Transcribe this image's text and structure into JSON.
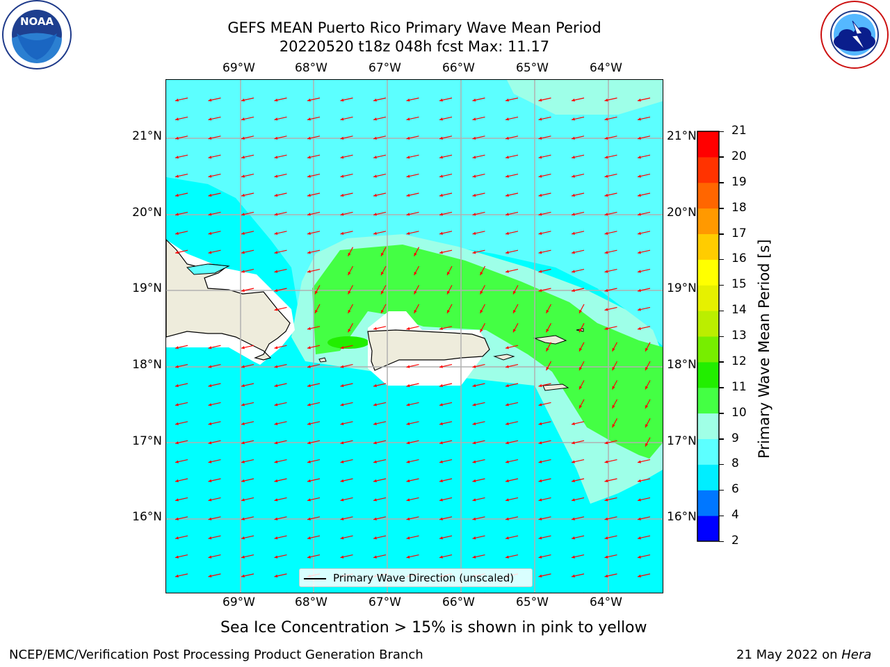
{
  "title": {
    "line1": "GEFS MEAN Puerto Rico Primary Wave Mean Period",
    "line2": "20220520 t18z 048h fcst   Max: 11.17"
  },
  "logos": {
    "left": {
      "text": "NOAA",
      "ring_text": "NATIONAL OCEANIC AND ATMOSPHERIC ADMINISTRATION · U.S. DEPARTMENT OF COMMERCE"
    },
    "right": {
      "ring_text": "NATIONAL WEATHER SERVICE"
    }
  },
  "axes": {
    "lon_labels": [
      "69°W",
      "68°W",
      "67°W",
      "66°W",
      "65°W",
      "64°W"
    ],
    "lat_labels": [
      "21°N",
      "20°N",
      "19°N",
      "18°N",
      "17°N",
      "16°N"
    ]
  },
  "legend": {
    "label": "Primary Wave Direction (unscaled)"
  },
  "colorbar": {
    "title": "Primary Wave Mean Period [s]",
    "ticks": [
      "2",
      "4",
      "6",
      "8",
      "9",
      "10",
      "11",
      "12",
      "13",
      "14",
      "15",
      "16",
      "17",
      "18",
      "19",
      "20",
      "21"
    ],
    "colors": [
      "#0000ff",
      "#0077ff",
      "#00eeff",
      "#5cffff",
      "#a0ffe6",
      "#44ff44",
      "#22ee00",
      "#77ee00",
      "#bbee00",
      "#e6f000",
      "#ffff00",
      "#ffcc00",
      "#ff9900",
      "#ff6600",
      "#ff3300",
      "#ff0000"
    ]
  },
  "colors": {
    "ocean_cyan": "#00ffff",
    "ocean_light": "#5cffff",
    "ocean_pale": "#9effe8",
    "green": "#44ff44",
    "land": "#eeecdc",
    "arrow": "#ff0000",
    "grid": "#b0b0b0"
  },
  "footer": {
    "note": "Sea Ice Concentration > 15% is shown in pink to yellow",
    "branch": "NCEP/EMC/Verification Post Processing Product Generation Branch",
    "date": "21 May 2022 on",
    "machine": "Hera"
  }
}
